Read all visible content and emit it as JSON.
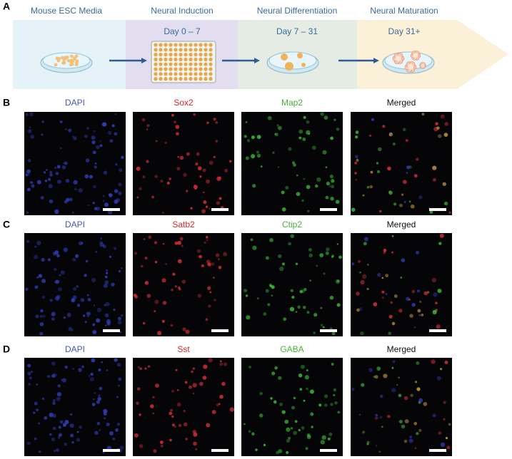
{
  "panel_a": {
    "label": "A",
    "stages": [
      {
        "title": "Mouse ESC Media"
      },
      {
        "title": "Neural Induction",
        "days": "Day 0 – 7"
      },
      {
        "title": "Neural Differentiation",
        "days": "Day 7 – 31"
      },
      {
        "title": "Neural Maturation",
        "days": "Day 31+"
      }
    ]
  },
  "rows": [
    {
      "label": "B",
      "channels": [
        "DAPI",
        "Sox2",
        "Map2",
        "Merged"
      ]
    },
    {
      "label": "C",
      "channels": [
        "DAPI",
        "Satb2",
        "Ctip2",
        "Merged"
      ]
    },
    {
      "label": "D",
      "channels": [
        "DAPI",
        "Sst",
        "GABA",
        "Merged"
      ]
    }
  ]
}
